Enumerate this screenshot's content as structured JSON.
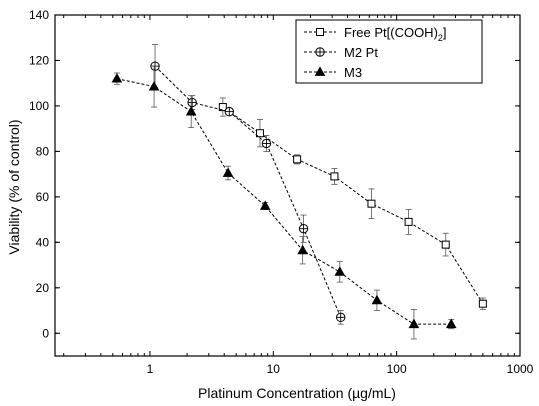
{
  "chart_data": {
    "type": "scatter",
    "xlabel": "Platinum Concentration (µg/mL)",
    "ylabel": "Viability (% of control)",
    "xscale": "log",
    "xlim": [
      0.17,
      1000
    ],
    "ylim": [
      -10,
      140
    ],
    "xticks": [
      1,
      10,
      100,
      1000
    ],
    "xtick_labels": [
      "1",
      "10",
      "100",
      "1000"
    ],
    "yticks": [
      0,
      20,
      40,
      60,
      80,
      100,
      120,
      140
    ],
    "legend_position": "top-right",
    "series": [
      {
        "name": "Free Pt[(COOH)2]",
        "legend_main": "Free Pt[(COOH)",
        "legend_sub": "2",
        "legend_tail": "]",
        "marker": "square-open",
        "points": [
          {
            "x": 3.9,
            "y": 99.5,
            "err": 4
          },
          {
            "x": 7.8,
            "y": 88,
            "err": 6
          },
          {
            "x": 15.6,
            "y": 76.5,
            "err": 2
          },
          {
            "x": 31.3,
            "y": 69,
            "err": 3.5
          },
          {
            "x": 62.5,
            "y": 57,
            "err": 6.5
          },
          {
            "x": 125,
            "y": 49,
            "err": 5.5
          },
          {
            "x": 250,
            "y": 39,
            "err": 5
          },
          {
            "x": 500,
            "y": 13,
            "err": 2.5
          }
        ]
      },
      {
        "name": "M2 Pt",
        "marker": "circle-plus",
        "points": [
          {
            "x": 1.1,
            "y": 117.5,
            "err": 9.5
          },
          {
            "x": 2.2,
            "y": 101.5,
            "err": 3
          },
          {
            "x": 4.4,
            "y": 97.5,
            "err": 1.5
          },
          {
            "x": 8.8,
            "y": 83.5,
            "err": 3.5
          },
          {
            "x": 17.6,
            "y": 46,
            "err": 6
          },
          {
            "x": 35.2,
            "y": 7,
            "err": 3
          }
        ]
      },
      {
        "name": "M3",
        "marker": "triangle-filled",
        "points": [
          {
            "x": 0.54,
            "y": 112,
            "err": 2.5
          },
          {
            "x": 1.08,
            "y": 108.5,
            "err": 9
          },
          {
            "x": 2.16,
            "y": 97.5,
            "err": 7
          },
          {
            "x": 4.3,
            "y": 70.5,
            "err": 3
          },
          {
            "x": 8.6,
            "y": 56,
            "err": 1.5
          },
          {
            "x": 17.3,
            "y": 36.5,
            "err": 6
          },
          {
            "x": 34.6,
            "y": 27,
            "err": 4.5
          },
          {
            "x": 69.2,
            "y": 14.5,
            "err": 4.5
          },
          {
            "x": 138,
            "y": 4,
            "err": 6.5
          },
          {
            "x": 277,
            "y": 4,
            "err": 2
          }
        ]
      }
    ]
  }
}
